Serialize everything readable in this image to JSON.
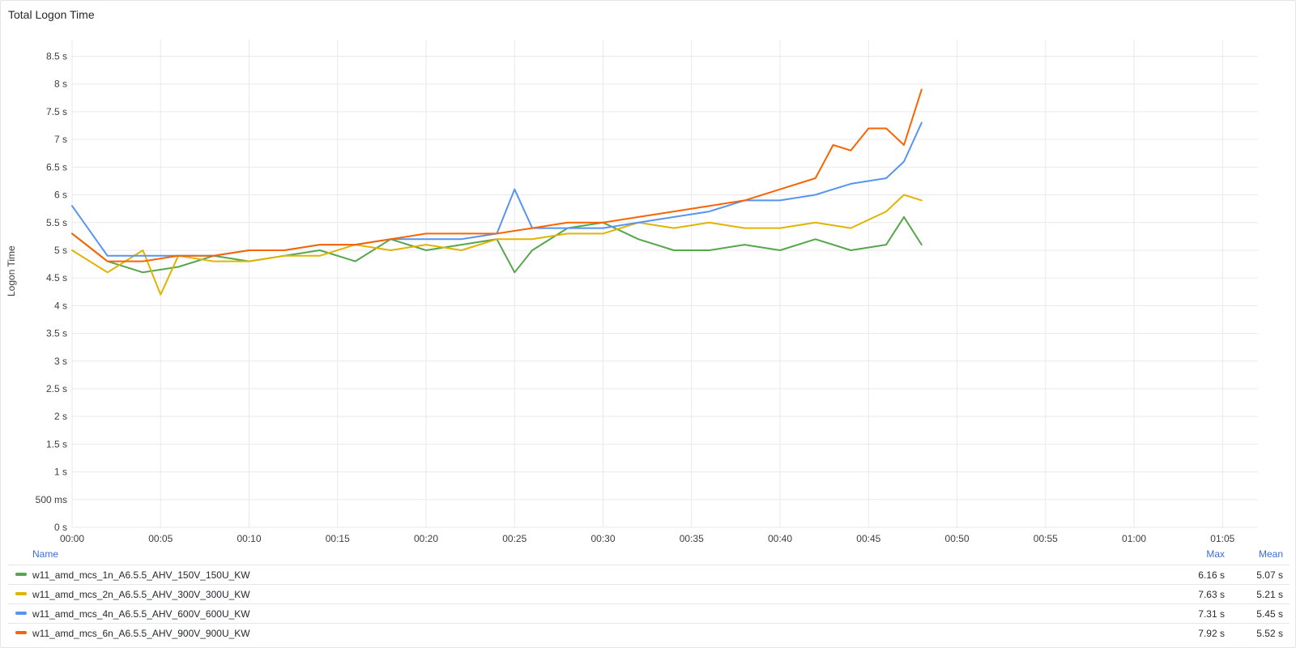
{
  "panel": {
    "title": "Total Logon Time"
  },
  "legend": {
    "header": {
      "name": "Name",
      "max": "Max",
      "mean": "Mean"
    },
    "rows": [
      {
        "name": "w11_amd_mcs_1n_A6.5.5_AHV_150V_150U_KW",
        "color": "#56a64b",
        "max": "6.16 s",
        "mean": "5.07 s"
      },
      {
        "name": "w11_amd_mcs_2n_A6.5.5_AHV_300V_300U_KW",
        "color": "#e0b400",
        "max": "7.63 s",
        "mean": "5.21 s"
      },
      {
        "name": "w11_amd_mcs_4n_A6.5.5_AHV_600V_600U_KW",
        "color": "#5794f2",
        "max": "7.31 s",
        "mean": "5.45 s"
      },
      {
        "name": "w11_amd_mcs_6n_A6.5.5_AHV_900V_900U_KW",
        "color": "#fa6400",
        "max": "7.92 s",
        "mean": "5.52 s"
      }
    ]
  },
  "chart_data": {
    "type": "line",
    "title": "Total Logon Time",
    "xlabel": "",
    "ylabel": "Logon Time",
    "xlim": [
      0,
      67
    ],
    "ylim": [
      0,
      8.8
    ],
    "grid": true,
    "legend_position": "bottom",
    "x_ticks": [
      "00:00",
      "00:05",
      "00:10",
      "00:15",
      "00:20",
      "00:25",
      "00:30",
      "00:35",
      "00:40",
      "00:45",
      "00:50",
      "00:55",
      "01:00",
      "01:05"
    ],
    "y_ticks": [
      "0 s",
      "500 ms",
      "1 s",
      "1.5 s",
      "2 s",
      "2.5 s",
      "3 s",
      "3.5 s",
      "4 s",
      "4.5 s",
      "5 s",
      "5.5 s",
      "6 s",
      "6.5 s",
      "7 s",
      "7.5 s",
      "8 s",
      "8.5 s"
    ],
    "series": [
      {
        "name": "w11_amd_mcs_1n_A6.5.5_AHV_150V_150U_KW",
        "color": "#56a64b",
        "x": [
          0,
          2,
          4,
          6,
          8,
          10,
          12,
          14,
          16,
          18,
          20,
          22,
          24,
          25,
          26,
          28,
          30,
          32,
          34,
          36,
          38,
          40,
          42,
          44,
          46,
          47,
          48
        ],
        "y": [
          5.3,
          4.8,
          4.6,
          4.7,
          4.9,
          4.8,
          4.9,
          5.0,
          4.8,
          5.2,
          5.0,
          5.1,
          5.2,
          4.6,
          5.0,
          5.4,
          5.5,
          5.2,
          5.0,
          5.0,
          5.1,
          5.0,
          5.2,
          5.0,
          5.1,
          5.6,
          5.1
        ]
      },
      {
        "name": "w11_amd_mcs_2n_A6.5.5_AHV_300V_300U_KW",
        "color": "#e0b400",
        "x": [
          0,
          2,
          4,
          5,
          6,
          8,
          10,
          12,
          14,
          16,
          18,
          20,
          22,
          24,
          26,
          28,
          30,
          32,
          34,
          36,
          38,
          40,
          42,
          44,
          46,
          47,
          48
        ],
        "y": [
          5.0,
          4.6,
          5.0,
          4.2,
          4.9,
          4.8,
          4.8,
          4.9,
          4.9,
          5.1,
          5.0,
          5.1,
          5.0,
          5.2,
          5.2,
          5.3,
          5.3,
          5.5,
          5.4,
          5.5,
          5.4,
          5.4,
          5.5,
          5.4,
          5.7,
          6.0,
          5.9
        ]
      },
      {
        "name": "w11_amd_mcs_4n_A6.5.5_AHV_600V_600U_KW",
        "color": "#5794f2",
        "x": [
          0,
          2,
          4,
          6,
          8,
          10,
          12,
          14,
          16,
          18,
          20,
          22,
          24,
          25,
          26,
          28,
          30,
          32,
          34,
          36,
          38,
          40,
          42,
          44,
          46,
          47,
          48
        ],
        "y": [
          5.8,
          4.9,
          4.9,
          4.9,
          4.9,
          5.0,
          5.0,
          5.1,
          5.1,
          5.2,
          5.2,
          5.2,
          5.3,
          6.1,
          5.4,
          5.4,
          5.4,
          5.5,
          5.6,
          5.7,
          5.9,
          5.9,
          6.0,
          6.2,
          6.3,
          6.6,
          7.3
        ]
      },
      {
        "name": "w11_amd_mcs_6n_A6.5.5_AHV_900V_900U_KW",
        "color": "#fa6400",
        "x": [
          0,
          2,
          4,
          6,
          8,
          10,
          12,
          14,
          16,
          18,
          20,
          22,
          24,
          26,
          28,
          30,
          32,
          34,
          36,
          38,
          40,
          42,
          43,
          44,
          45,
          46,
          47,
          48
        ],
        "y": [
          5.3,
          4.8,
          4.8,
          4.9,
          4.9,
          5.0,
          5.0,
          5.1,
          5.1,
          5.2,
          5.3,
          5.3,
          5.3,
          5.4,
          5.5,
          5.5,
          5.6,
          5.7,
          5.8,
          5.9,
          6.1,
          6.3,
          6.9,
          6.8,
          7.2,
          7.2,
          6.9,
          7.9
        ]
      }
    ]
  }
}
